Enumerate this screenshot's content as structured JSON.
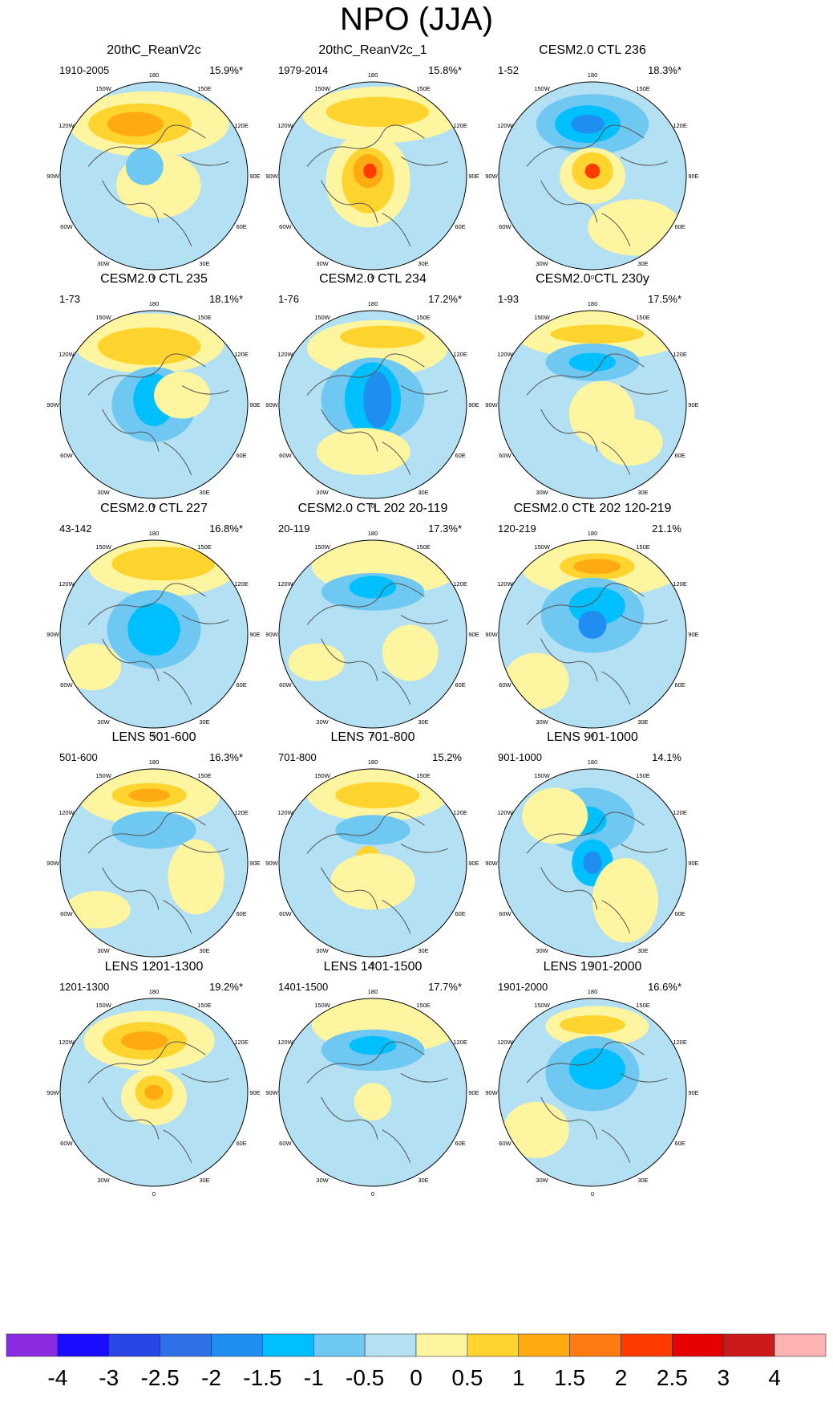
{
  "title": "NPO (JJA)",
  "chart_data": {
    "type": "polar-stereographic-map-grid",
    "title": "NPO (JJA)",
    "longitude_labels": [
      "180",
      "150E",
      "120E",
      "90E",
      "60E",
      "30E",
      "0",
      "30W",
      "60W",
      "90W",
      "120W",
      "150W"
    ],
    "panels": [
      {
        "name": "20thC_ReanV2c",
        "period": "1910-2005",
        "variance": "15.9%*"
      },
      {
        "name": "20thC_ReanV2c_1",
        "period": "1979-2014",
        "variance": "15.8%*"
      },
      {
        "name": "CESM2.0 CTL 236",
        "period": "1-52",
        "variance": "18.3%*"
      },
      {
        "name": "CESM2.0 CTL 235",
        "period": "1-73",
        "variance": "18.1%*"
      },
      {
        "name": "CESM2.0 CTL 234",
        "period": "1-76",
        "variance": "17.2%*"
      },
      {
        "name": "CESM2.0 CTL 230y",
        "period": "1-93",
        "variance": "17.5%*"
      },
      {
        "name": "CESM2.0 CTL 227",
        "period": "43-142",
        "variance": "16.8%*"
      },
      {
        "name": "CESM2.0 CTL 202 20-119",
        "period": "20-119",
        "variance": "17.3%*"
      },
      {
        "name": "CESM2.0 CTL 202 120-219",
        "period": "120-219",
        "variance": "21.1%"
      },
      {
        "name": "LENS 501-600",
        "period": "501-600",
        "variance": "16.3%*"
      },
      {
        "name": "LENS 701-800",
        "period": "701-800",
        "variance": "15.2%"
      },
      {
        "name": "LENS 901-1000",
        "period": "901-1000",
        "variance": "14.1%"
      },
      {
        "name": "LENS 1201-1300",
        "period": "1201-1300",
        "variance": "19.2%*"
      },
      {
        "name": "LENS 1401-1500",
        "period": "1401-1500",
        "variance": "17.7%*"
      },
      {
        "name": "LENS 1901-2000",
        "period": "1901-2000",
        "variance": "16.6%*"
      }
    ],
    "colorbar": {
      "labels": [
        "-4",
        "-3",
        "-2.5",
        "-2",
        "-1.5",
        "-1",
        "-0.5",
        "0",
        "0.5",
        "1",
        "1.5",
        "2",
        "2.5",
        "3",
        "4"
      ],
      "colors": [
        "#8a2be2",
        "#1a0dff",
        "#2945e6",
        "#2f6fe8",
        "#1f8ef0",
        "#00bfff",
        "#6fc8f2",
        "#b3e0f2",
        "#fdf5a0",
        "#ffd42e",
        "#ffaa10",
        "#ff7a10",
        "#ff3b00",
        "#e60000",
        "#cc1a1a",
        "#ffb3b3"
      ]
    }
  }
}
